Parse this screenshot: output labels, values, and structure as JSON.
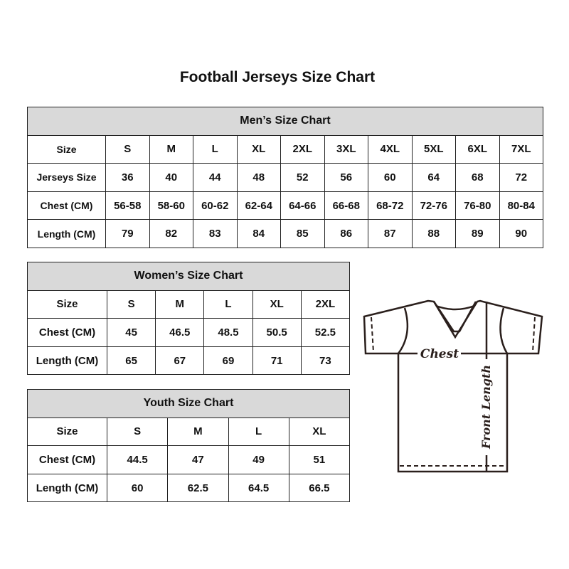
{
  "title": "Football Jerseys Size Chart",
  "men": {
    "title": "Men’s Size Chart",
    "rows": [
      [
        "Size",
        "S",
        "M",
        "L",
        "XL",
        "2XL",
        "3XL",
        "4XL",
        "5XL",
        "6XL",
        "7XL"
      ],
      [
        "Jerseys Size",
        "36",
        "40",
        "44",
        "48",
        "52",
        "56",
        "60",
        "64",
        "68",
        "72"
      ],
      [
        "Chest (CM)",
        "56-58",
        "58-60",
        "60-62",
        "62-64",
        "64-66",
        "66-68",
        "68-72",
        "72-76",
        "76-80",
        "80-84"
      ],
      [
        "Length (CM)",
        "79",
        "82",
        "83",
        "84",
        "85",
        "86",
        "87",
        "88",
        "89",
        "90"
      ]
    ]
  },
  "women": {
    "title": "Women’s Size Chart",
    "rows": [
      [
        "Size",
        "S",
        "M",
        "L",
        "XL",
        "2XL"
      ],
      [
        "Chest (CM)",
        "45",
        "46.5",
        "48.5",
        "50.5",
        "52.5"
      ],
      [
        "Length (CM)",
        "65",
        "67",
        "69",
        "71",
        "73"
      ]
    ]
  },
  "youth": {
    "title": "Youth Size Chart",
    "rows": [
      [
        "Size",
        "S",
        "M",
        "L",
        "XL"
      ],
      [
        "Chest (CM)",
        "44.5",
        "47",
        "49",
        "51"
      ],
      [
        "Length (CM)",
        "60",
        "62.5",
        "64.5",
        "66.5"
      ]
    ]
  },
  "diagram": {
    "chest_label": "Chest",
    "length_label": "Front Length"
  }
}
